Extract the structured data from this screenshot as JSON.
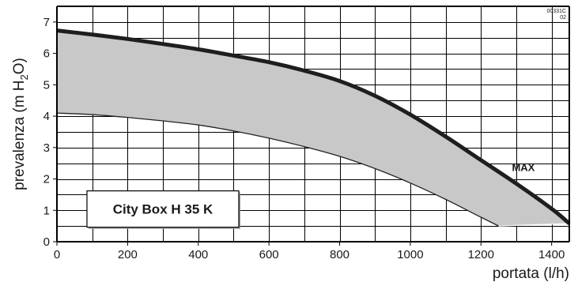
{
  "chart_data": {
    "type": "area",
    "xlabel": "portata (l/h)",
    "ylabel_parts": {
      "main": "prevalenza (m H",
      "sub": "2",
      "tail": "O)"
    },
    "xlim": [
      0,
      1450
    ],
    "ylim": [
      0,
      7.5
    ],
    "x_ticks": [
      0,
      200,
      400,
      600,
      800,
      1000,
      1200,
      1400
    ],
    "y_ticks": [
      0,
      1,
      2,
      3,
      4,
      5,
      6,
      7
    ],
    "x_grid_step": 100,
    "y_grid_step": 0.5,
    "grid": true,
    "series": [
      {
        "name": "MAX",
        "x": [
          0,
          100,
          200,
          300,
          400,
          500,
          600,
          700,
          800,
          900,
          1000,
          1100,
          1200,
          1300,
          1400,
          1450
        ],
        "y": [
          6.73,
          6.6,
          6.46,
          6.3,
          6.13,
          5.93,
          5.72,
          5.45,
          5.12,
          4.65,
          4.05,
          3.35,
          2.6,
          1.85,
          1.05,
          0.58
        ]
      },
      {
        "name": "",
        "x": [
          0,
          100,
          200,
          300,
          400,
          500,
          600,
          700,
          800,
          900,
          1000,
          1100,
          1200,
          1250
        ],
        "y": [
          4.1,
          4.05,
          3.96,
          3.85,
          3.72,
          3.53,
          3.3,
          3.03,
          2.72,
          2.33,
          1.87,
          1.35,
          0.78,
          0.5
        ]
      }
    ],
    "fill_between": true,
    "fill_closure": {
      "x": [
        1250,
        1450
      ],
      "y": [
        0.5,
        0.58
      ]
    },
    "annotations": [
      {
        "text": "MAX",
        "x": 1320,
        "y": 2.25
      }
    ],
    "text_box": {
      "text": "City Box H  35 K"
    },
    "corner_tag": [
      "00331C",
      "02"
    ],
    "colors": {
      "fill": "#c8c8c8",
      "max_line": "#1e1e1e",
      "min_line": "#222222",
      "frame": "#000000"
    }
  }
}
